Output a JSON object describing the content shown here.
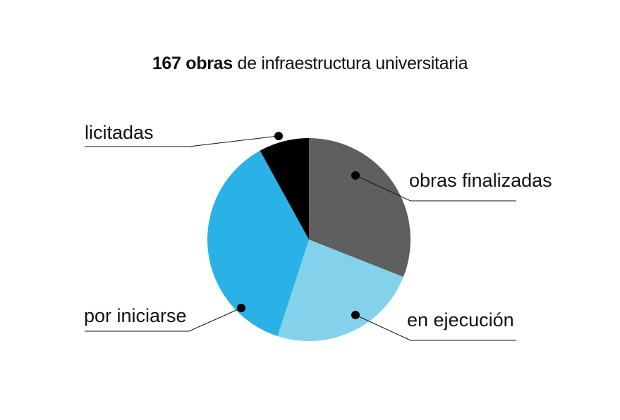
{
  "chart_data": {
    "type": "pie",
    "title_bold": "167 obras",
    "title_rest": " de infraestructura universitaria",
    "slices": [
      {
        "label": "obras finalizadas",
        "percent": 31,
        "color": "#5f5f5f"
      },
      {
        "label": "en ejecución",
        "percent": 24,
        "color": "#84d1eb"
      },
      {
        "label": "por iniciarse",
        "percent": 37,
        "color": "#2ab2e7"
      },
      {
        "label": "licitadas",
        "percent": 8,
        "color": "#000000"
      }
    ],
    "start_angle_deg": 0,
    "direction": "clockwise"
  }
}
